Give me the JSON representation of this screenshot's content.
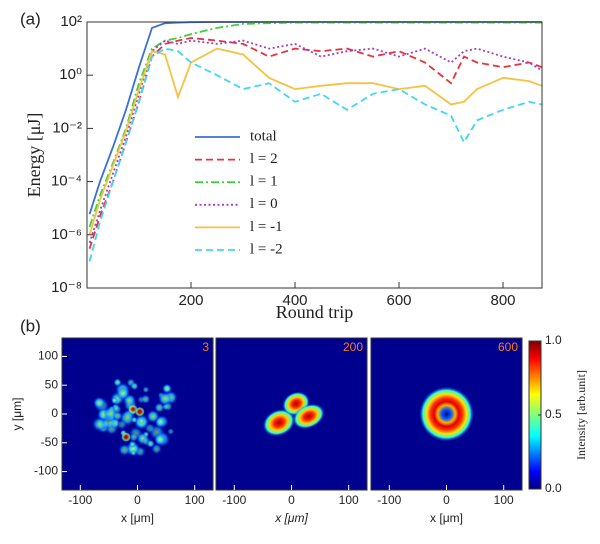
{
  "chart_data": [
    {
      "type": "line",
      "panel_label": "(a)",
      "xlabel": "Round trip",
      "ylabel": "Energy [μJ]",
      "log_y": true,
      "legend": "lower center",
      "xlim": [
        0,
        875
      ],
      "xticks": [
        200,
        400,
        600,
        800
      ],
      "ylim": [
        1e-08,
        100
      ],
      "yticks": [
        {
          "value": 1e-08,
          "label": "10⁻⁸"
        },
        {
          "value": 1e-06,
          "label": "10⁻⁶"
        },
        {
          "value": 0.0001,
          "label": "10⁻⁴"
        },
        {
          "value": 0.01,
          "label": "10⁻²"
        },
        {
          "value": 1,
          "label": "10⁰"
        },
        {
          "value": 100,
          "label": "10²"
        }
      ],
      "x": [
        5,
        25,
        50,
        75,
        100,
        125,
        150,
        175,
        200,
        250,
        300,
        350,
        400,
        450,
        500,
        550,
        600,
        650,
        700,
        725,
        750,
        800,
        850,
        875
      ],
      "series": [
        {
          "name": "total",
          "color": "#3b6fd8",
          "style": "solid",
          "values": [
            6e-06,
            0.0001,
            0.002,
            0.05,
            2,
            60,
            90,
            95,
            98,
            100,
            100,
            100,
            100,
            100,
            100,
            100,
            100,
            100,
            100,
            100,
            100,
            100,
            100,
            100
          ]
        },
        {
          "name": "l = 2",
          "color": "#e8323c",
          "style": "dashed",
          "values": [
            3e-07,
            5e-06,
            0.0001,
            0.003,
            0.1,
            5,
            15,
            20,
            25,
            20,
            15,
            5,
            10,
            8,
            10,
            5,
            8,
            3,
            0.5,
            5,
            3,
            2,
            3,
            2
          ]
        },
        {
          "name": "l = 1",
          "color": "#3ed13e",
          "style": "dashdot",
          "values": [
            2e-06,
            3e-05,
            0.0005,
            0.01,
            0.5,
            10,
            20,
            25,
            35,
            60,
            85,
            90,
            95,
            95,
            95,
            95,
            95,
            95,
            95,
            95,
            95,
            95,
            95,
            95
          ]
        },
        {
          "name": "l = 0",
          "color": "#a040c0",
          "style": "dotted",
          "values": [
            5e-07,
            8e-06,
            0.0002,
            0.005,
            0.2,
            8,
            20,
            15,
            20,
            15,
            20,
            10,
            15,
            5,
            8,
            10,
            5,
            10,
            3,
            8,
            10,
            5,
            3,
            1.5
          ]
        },
        {
          "name": "l = -1",
          "color": "#f5c242",
          "style": "solid",
          "values": [
            1e-06,
            2e-05,
            0.0004,
            0.008,
            0.3,
            8,
            6,
            0.15,
            3,
            10,
            6,
            0.8,
            0.3,
            0.4,
            0.5,
            0.5,
            0.3,
            0.4,
            0.08,
            0.1,
            0.3,
            0.8,
            0.6,
            0.4
          ]
        },
        {
          "name": "l = -2",
          "color": "#40d8f0",
          "style": "dashed",
          "values": [
            1e-07,
            3e-06,
            0.0001,
            0.003,
            0.1,
            5,
            10,
            8,
            3,
            1,
            0.3,
            0.5,
            0.1,
            0.2,
            0.05,
            0.2,
            0.3,
            0.08,
            0.03,
            0.003,
            0.02,
            0.05,
            0.1,
            0.08
          ]
        }
      ]
    },
    {
      "type": "heatmap",
      "panel_label": "(b)",
      "ylabel": "y [μm]",
      "images": [
        {
          "label": "3",
          "xlabel": "x [μm]",
          "pattern": "speckle"
        },
        {
          "label": "200",
          "xlabel": "x [μm]",
          "pattern": "lobes"
        },
        {
          "label": "600",
          "xlabel": "x [μm]",
          "pattern": "ring"
        }
      ],
      "xlim": [
        -132,
        132
      ],
      "ylim": [
        -132,
        132
      ],
      "xticks": [
        -100,
        0,
        100
      ],
      "yticks": [
        100,
        50,
        0,
        -50,
        -100
      ],
      "colorbar": {
        "label": "Intensity [arb.unit]",
        "lim": [
          0,
          1
        ],
        "ticks": [
          {
            "value": 0,
            "label": "0.0"
          },
          {
            "value": 0.5,
            "label": "0.5"
          },
          {
            "value": 1,
            "label": "1.0"
          }
        ]
      }
    }
  ]
}
